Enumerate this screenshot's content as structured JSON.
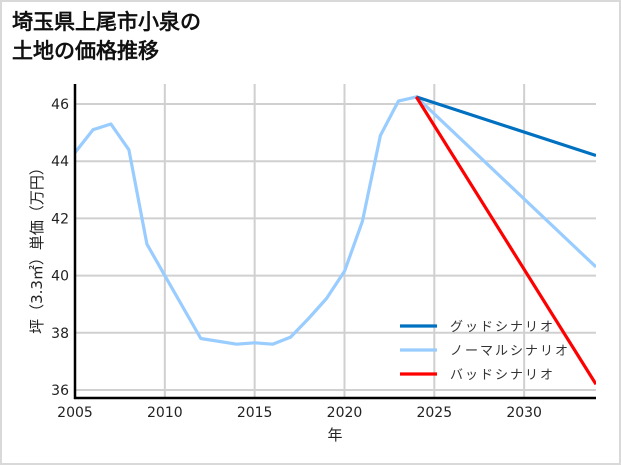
{
  "title_line1": "埼玉県上尾市小泉の",
  "title_line2": "土地の価格推移",
  "chart_data": {
    "type": "line",
    "title": "埼玉県上尾市小泉の土地の価格推移",
    "xlabel": "年",
    "ylabel": "坪（3.3㎡）単価（万円）",
    "xlim": [
      2005,
      2034
    ],
    "ylim": [
      35.7,
      46.8
    ],
    "xticks": [
      2005,
      2010,
      2015,
      2020,
      2025,
      2030
    ],
    "yticks": [
      36,
      38,
      40,
      42,
      44,
      46
    ],
    "grid": true,
    "legend_position": "lower right",
    "series": [
      {
        "name": "ノーマルシナリオ",
        "color": "#99ccff",
        "x": [
          2005,
          2006,
          2007,
          2008,
          2009,
          2010,
          2012,
          2014,
          2015,
          2016,
          2017,
          2018,
          2019,
          2020,
          2021,
          2022,
          2023,
          2024,
          2034
        ],
        "values": [
          44.3,
          45.1,
          45.3,
          44.4,
          41.1,
          40.0,
          37.8,
          37.6,
          37.65,
          37.6,
          37.85,
          38.5,
          39.2,
          40.15,
          41.9,
          44.9,
          46.1,
          46.25,
          40.3
        ]
      },
      {
        "name": "グッドシナリオ",
        "color": "#0070c0",
        "x": [
          2024,
          2034
        ],
        "values": [
          46.25,
          44.2
        ]
      },
      {
        "name": "バッドシナリオ",
        "color": "#ff0000",
        "x": [
          2024,
          2034
        ],
        "values": [
          46.25,
          36.2
        ]
      }
    ],
    "legend": [
      "グッドシナリオ",
      "ノーマルシナリオ",
      "バッドシナリオ"
    ]
  }
}
